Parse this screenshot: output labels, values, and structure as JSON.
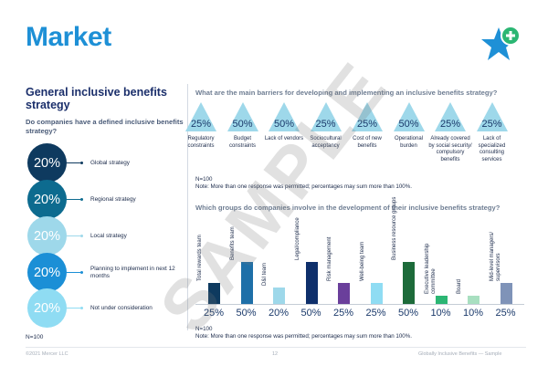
{
  "page": {
    "title": "Market",
    "watermark": "SAMPLE"
  },
  "left": {
    "heading": "General inclusive benefits strategy",
    "question": "Do companies have a defined inclusive benefits strategy?",
    "items": [
      {
        "value": "20%",
        "label": "Global strategy",
        "color": "#0e3a5f"
      },
      {
        "value": "20%",
        "label": "Regional strategy",
        "color": "#0d6b8f"
      },
      {
        "value": "20%",
        "label": "Local strategy",
        "color": "#9ed8ea"
      },
      {
        "value": "20%",
        "label": "Planning to implement in next 12 months",
        "color": "#1b8fd6"
      },
      {
        "value": "20%",
        "label": "Not under consideration",
        "color": "#8fdcf3"
      }
    ],
    "n": "N=100"
  },
  "barriers": {
    "question": "What are the main barriers for developing and implementing an inclusive benefits strategy?",
    "items": [
      {
        "value": "25%",
        "label": "Regulatory constraints"
      },
      {
        "value": "50%",
        "label": "Budget constraints"
      },
      {
        "value": "50%",
        "label": "Lack of vendors"
      },
      {
        "value": "25%",
        "label": "Sociocultural acceptancy"
      },
      {
        "value": "25%",
        "label": "Cost of new benefits"
      },
      {
        "value": "50%",
        "label": "Operational burden"
      },
      {
        "value": "25%",
        "label": "Already covered by social security/ compulsory benefits"
      },
      {
        "value": "25%",
        "label": "Lack of specialized consulting services"
      }
    ],
    "n": "N=100",
    "note": "Note: More than one response was permitted; percentages may sum more than 100%."
  },
  "groups": {
    "question": "Which groups do companies involve in the development of their inclusive benefits strategy?",
    "items": [
      {
        "value": "25%",
        "share": 25,
        "label": "Total rewards team",
        "color": "#0e3a5f"
      },
      {
        "value": "50%",
        "share": 50,
        "label": "Benefits team",
        "color": "#1e6fa8"
      },
      {
        "value": "20%",
        "share": 20,
        "label": "D&I team",
        "color": "#9ed8ea"
      },
      {
        "value": "50%",
        "share": 50,
        "label": "Legal/compliance",
        "color": "#0e2f6b"
      },
      {
        "value": "25%",
        "share": 25,
        "label": "Risk management",
        "color": "#6a3f9b"
      },
      {
        "value": "25%",
        "share": 25,
        "label": "Well-being team",
        "color": "#8fdcf3"
      },
      {
        "value": "50%",
        "share": 50,
        "label": "Business resource groups",
        "color": "#1d6b3a"
      },
      {
        "value": "10%",
        "share": 10,
        "label": "Executive leadership committee",
        "color": "#2bb673"
      },
      {
        "value": "10%",
        "share": 10,
        "label": "Board",
        "color": "#a8dfc0"
      },
      {
        "value": "25%",
        "share": 25,
        "label": "Mid-level managers/ supervisors",
        "color": "#7f93b8"
      }
    ],
    "n": "N=100",
    "note": "Note: More than one response was permitted; percentages may sum more than 100%."
  },
  "footer": {
    "copyright": "©2021 Mercer LLC",
    "page_number": "12",
    "source": "Globally Inclusive Benefits — Sample"
  }
}
